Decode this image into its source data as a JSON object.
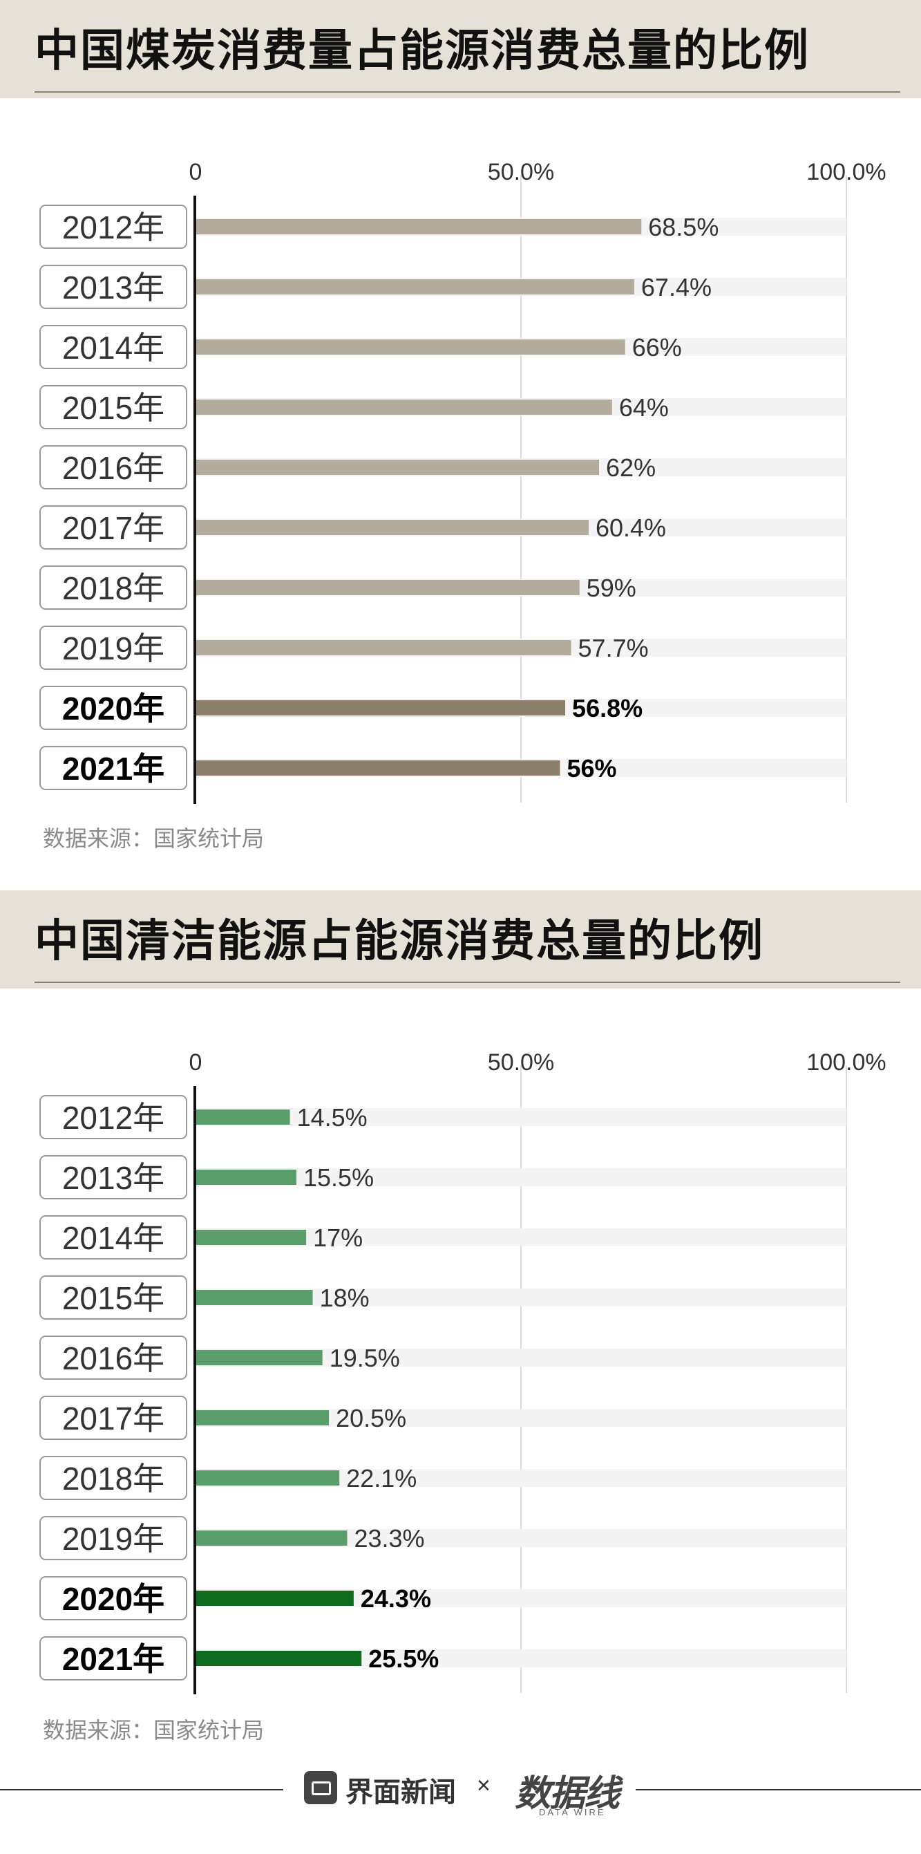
{
  "charts": [
    {
      "title": "中国煤炭消费量占能源消费总量的比例",
      "source": "数据来源：国家统计局",
      "bar_color": "#b3ab9b",
      "highlight_color": "#8a7f6a"
    },
    {
      "title": "中国清洁能源占能源消费总量的比例",
      "source": "数据来源：国家统计局",
      "bar_color": "#5a9e6b",
      "highlight_color": "#0f6b1f"
    }
  ],
  "chart_data": [
    {
      "type": "bar",
      "orientation": "horizontal",
      "title": "中国煤炭消费量占能源消费总量的比例",
      "categories": [
        "2012年",
        "2013年",
        "2014年",
        "2015年",
        "2016年",
        "2017年",
        "2018年",
        "2019年",
        "2020年",
        "2021年"
      ],
      "values": [
        68.5,
        67.4,
        66,
        64,
        62,
        60.4,
        59,
        57.7,
        56.8,
        56
      ],
      "labels": [
        "68.5%",
        "67.4%",
        "66%",
        "64%",
        "62%",
        "60.4%",
        "59%",
        "57.7%",
        "56.8%",
        "56%"
      ],
      "highlighted": [
        "2020年",
        "2021年"
      ],
      "xlim": [
        0,
        100
      ],
      "ticks": [
        "0",
        "50.0%",
        "100.0%"
      ],
      "grid": true
    },
    {
      "type": "bar",
      "orientation": "horizontal",
      "title": "中国清洁能源占能源消费总量的比例",
      "categories": [
        "2012年",
        "2013年",
        "2014年",
        "2015年",
        "2016年",
        "2017年",
        "2018年",
        "2019年",
        "2020年",
        "2021年"
      ],
      "values": [
        14.5,
        15.5,
        17,
        18,
        19.5,
        20.5,
        22.1,
        23.3,
        24.3,
        25.5
      ],
      "labels": [
        "14.5%",
        "15.5%",
        "17%",
        "18%",
        "19.5%",
        "20.5%",
        "22.1%",
        "23.3%",
        "24.3%",
        "25.5%"
      ],
      "highlighted": [
        "2020年",
        "2021年"
      ],
      "xlim": [
        0,
        100
      ],
      "ticks": [
        "0",
        "50.0%",
        "100.0%"
      ],
      "grid": true
    }
  ],
  "footer": {
    "brand": "界面新闻",
    "separator": "×",
    "partner": "数据线",
    "partner_sub": "DATA WIRE"
  }
}
